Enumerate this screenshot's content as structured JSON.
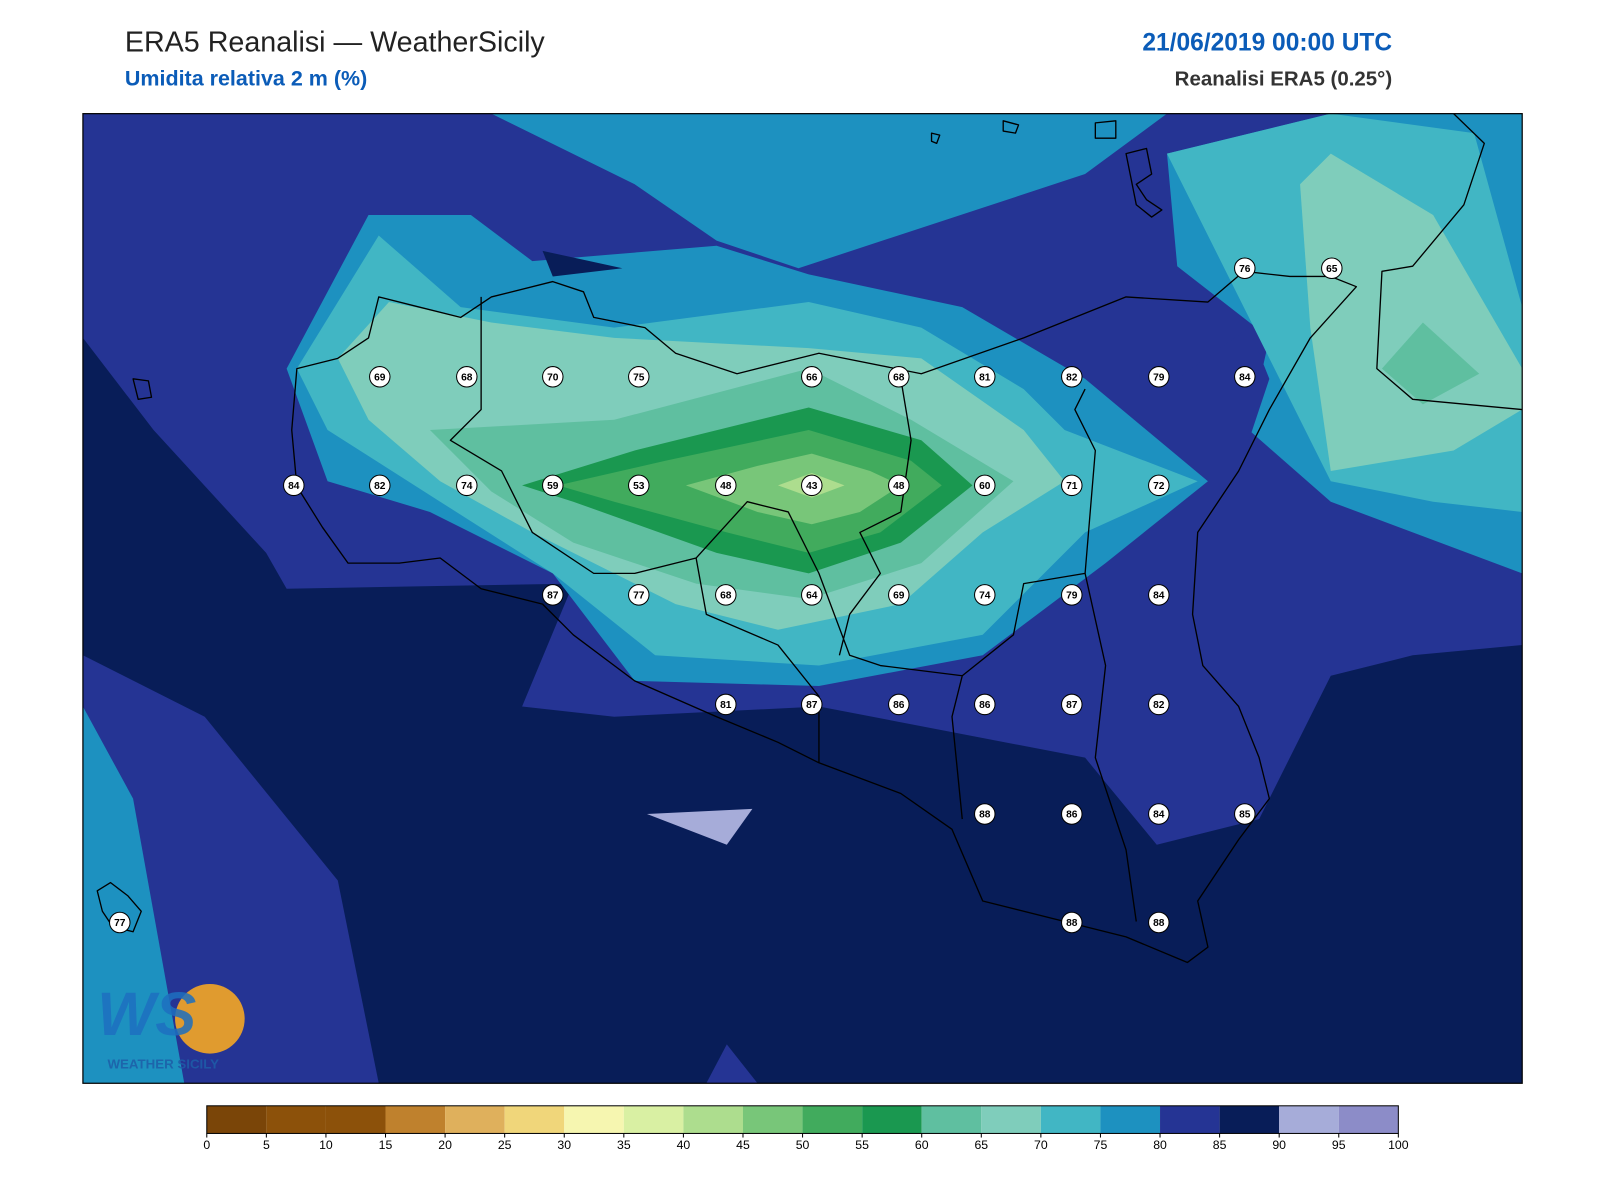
{
  "header": {
    "title": "ERA5 Reanalisi — WeatherSicily",
    "subtitle": "Umidita relativa 2 m (%)",
    "date": "21/06/2019 00:00 UTC",
    "source": "Reanalisi ERA5 (0.25°)"
  },
  "map": {
    "stations": [
      76,
      65,
      69,
      68,
      70,
      75,
      66,
      68,
      81,
      82,
      79,
      84,
      84,
      82,
      74,
      59,
      53,
      48,
      43,
      48,
      60,
      71,
      72,
      87,
      77,
      68,
      64,
      69,
      74,
      79,
      84,
      81,
      87,
      86,
      86,
      87,
      82,
      88,
      86,
      84,
      85,
      77,
      88,
      88
    ]
  },
  "logo": {
    "mark": "WS",
    "name": "WEATHER SICILY"
  },
  "colorbar": {
    "ticks": [
      0,
      5,
      10,
      15,
      20,
      25,
      30,
      35,
      40,
      45,
      50,
      55,
      60,
      65,
      70,
      75,
      80,
      85,
      90,
      95,
      100
    ],
    "colors": [
      "#7a4508",
      "#8c510a",
      "#8c510a",
      "#bf812d",
      "#dfb05c",
      "#f0d67a",
      "#f6f6b0",
      "#d9f0a3",
      "#addd8e",
      "#78c679",
      "#41ab5d",
      "#1a9850",
      "#5fbfa0",
      "#7fcdbb",
      "#41b6c4",
      "#1d91c0",
      "#253494",
      "#081d58",
      "#a6acd9",
      "#8c8cc8"
    ]
  }
}
